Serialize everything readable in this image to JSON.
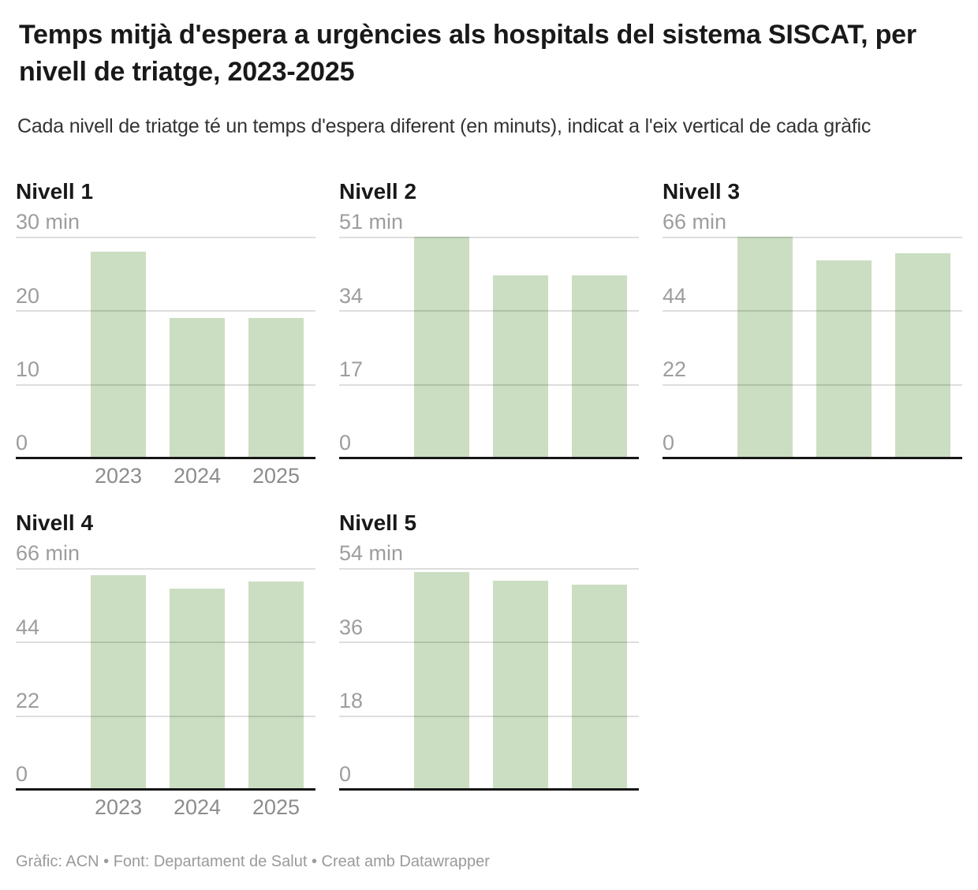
{
  "chart_data": {
    "type": "bar",
    "layout": "small-multiples, 2 rows x 3 columns, 5 panels, shared categories",
    "title": "Temps mitjà d'espera a urgències als hospitals del sistema SISCAT, per nivell de triatge, 2023-2025",
    "subtitle": "Cada nivell de triatge té un temps d'espera diferent (en minuts), indicat a l'eix vertical de cada gràfic",
    "unit": "min",
    "grid": "horizontal gridlines on",
    "categories": [
      "2023",
      "2024",
      "2025"
    ],
    "panels": [
      {
        "title": "Nivell 1",
        "axis_max": 30,
        "ticks": [
          "30 min",
          "20",
          "10",
          "0"
        ],
        "values": [
          28,
          19,
          19
        ],
        "show_x_labels": true
      },
      {
        "title": "Nivell 2",
        "axis_max": 51,
        "ticks": [
          "51 min",
          "34",
          "17",
          "0"
        ],
        "values": [
          51,
          42,
          42
        ],
        "show_x_labels": false
      },
      {
        "title": "Nivell 3",
        "axis_max": 66,
        "ticks": [
          "66 min",
          "44",
          "22",
          "0"
        ],
        "values": [
          66,
          59,
          61
        ],
        "show_x_labels": false
      },
      {
        "title": "Nivell 4",
        "axis_max": 66,
        "ticks": [
          "66 min",
          "44",
          "22",
          "0"
        ],
        "values": [
          64,
          60,
          62
        ],
        "show_x_labels": true
      },
      {
        "title": "Nivell 5",
        "axis_max": 54,
        "ticks": [
          "54 min",
          "36",
          "18",
          "0"
        ],
        "values": [
          53,
          51,
          50
        ],
        "show_x_labels": false
      }
    ]
  },
  "footer": {
    "text": "Gràfic: ACN • Font: Departament de Salut • Creat amb Datawrapper"
  },
  "colors": {
    "bar": "#cbdec2",
    "gridline": "#dcdcdc",
    "axis_line": "#161616",
    "tick_label": "#9d9d9d",
    "year_label": "#8c8c8c",
    "title_text": "#191919",
    "footer_text": "#9a9a9a"
  }
}
